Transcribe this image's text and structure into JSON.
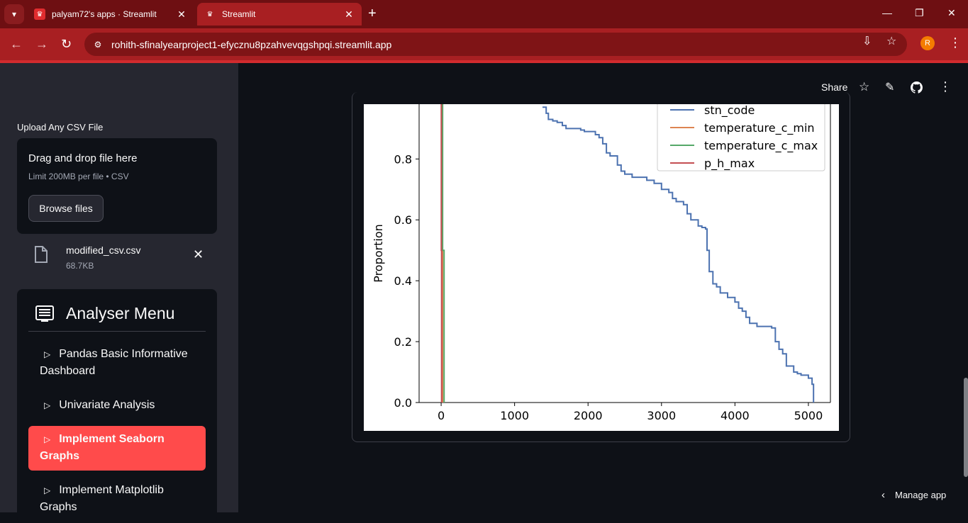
{
  "browser": {
    "tabs": [
      {
        "title": "palyam72's apps · Streamlit",
        "active": false
      },
      {
        "title": "Streamlit",
        "active": true
      }
    ],
    "url": "rohith-sfinalyearproject1-efycznu8pzahvevqgshpqi.streamlit.app",
    "profile_initial": "R",
    "colors": {
      "frame": "#6e0f12",
      "toolbar": "#a81f22"
    }
  },
  "header": {
    "share_label": "Share",
    "icons": [
      "star-icon",
      "pencil-icon",
      "github-icon",
      "more-vert-icon"
    ]
  },
  "sidebar": {
    "upload_label": "Upload Any CSV File",
    "dropzone_title": "Drag and drop file here",
    "dropzone_limit": "Limit 200MB per file • CSV",
    "browse_label": "Browse files",
    "file": {
      "name": "modified_csv.csv",
      "size": "68.7KB"
    },
    "menu_title": "Analyser Menu",
    "menu_items": [
      {
        "label_line1": "Pandas Basic Informative",
        "label_line2": "Dashboard",
        "active": false
      },
      {
        "label_line1": "Univariate Analysis",
        "label_line2": "",
        "active": false
      },
      {
        "label_line1": "Implement Seaborn",
        "label_line2": "Graphs",
        "active": true
      },
      {
        "label_line1": "Implement Matplotlib",
        "label_line2": "Graphs",
        "active": false
      }
    ],
    "accent": "#ff4b4b"
  },
  "chart_data": {
    "type": "line",
    "title": "",
    "xlabel": "",
    "ylabel": "Proportion",
    "xlim": [
      -300,
      5300
    ],
    "ylim": [
      0.0,
      0.98
    ],
    "x_ticks": [
      0,
      1000,
      2000,
      3000,
      4000,
      5000
    ],
    "x_tick_labels": [
      "0",
      "1000",
      "2000",
      "3000",
      "4000",
      "5000"
    ],
    "y_ticks": [
      0.0,
      0.2,
      0.4,
      0.6,
      0.8
    ],
    "y_tick_labels": [
      "0.0",
      "0.2",
      "0.4",
      "0.6",
      "0.8"
    ],
    "legend": {
      "position": "top-right"
    },
    "grid": false,
    "series": [
      {
        "name": "stn_code",
        "color": "#4c72b0",
        "x": [
          1380,
          1430,
          1460,
          1520,
          1580,
          1650,
          1700,
          1750,
          1800,
          1850,
          1900,
          1950,
          2000,
          2100,
          2150,
          2200,
          2250,
          2300,
          2350,
          2400,
          2450,
          2500,
          2600,
          2700,
          2800,
          2900,
          3000,
          3100,
          3150,
          3200,
          3300,
          3350,
          3400,
          3500,
          3550,
          3600,
          3620,
          3650,
          3700,
          3750,
          3800,
          3900,
          4000,
          4050,
          4100,
          4150,
          4200,
          4300,
          4400,
          4500,
          4550,
          4600,
          4650,
          4700,
          4800,
          4850,
          4900,
          5000,
          5050,
          5070
        ],
        "y": [
          0.97,
          0.95,
          0.93,
          0.925,
          0.92,
          0.91,
          0.9,
          0.9,
          0.9,
          0.9,
          0.895,
          0.89,
          0.89,
          0.88,
          0.87,
          0.85,
          0.82,
          0.81,
          0.81,
          0.78,
          0.76,
          0.75,
          0.74,
          0.74,
          0.73,
          0.72,
          0.7,
          0.69,
          0.67,
          0.66,
          0.65,
          0.62,
          0.6,
          0.58,
          0.575,
          0.57,
          0.5,
          0.43,
          0.39,
          0.38,
          0.36,
          0.345,
          0.33,
          0.31,
          0.3,
          0.28,
          0.26,
          0.25,
          0.25,
          0.245,
          0.2,
          0.175,
          0.16,
          0.12,
          0.1,
          0.095,
          0.09,
          0.08,
          0.06,
          0.0
        ]
      },
      {
        "name": "temperature_c_min",
        "color": "#dd8452",
        "x": [
          5,
          5,
          20,
          20
        ],
        "y": [
          0.98,
          0.5,
          0.5,
          0.0
        ]
      },
      {
        "name": "temperature_c_max",
        "color": "#55a868",
        "x": [
          20,
          20,
          40,
          40
        ],
        "y": [
          0.98,
          0.5,
          0.5,
          0.0
        ]
      },
      {
        "name": "p_h_max",
        "color": "#c44e52",
        "x": [
          2,
          2,
          6,
          6
        ],
        "y": [
          0.98,
          0.5,
          0.5,
          0.0
        ]
      }
    ]
  },
  "footer": {
    "manage_label": "Manage app"
  }
}
